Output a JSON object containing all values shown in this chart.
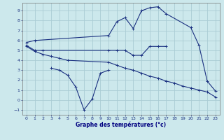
{
  "xlabel": "Graphe des températures (°c)",
  "background_color": "#cce8ec",
  "grid_color": "#aaccd4",
  "line_color": "#1a3080",
  "x_ticks": [
    0,
    1,
    2,
    3,
    4,
    5,
    6,
    7,
    8,
    9,
    10,
    11,
    12,
    13,
    14,
    15,
    16,
    17,
    18,
    19,
    20,
    21,
    22,
    23
  ],
  "y_ticks": [
    -1,
    0,
    1,
    2,
    3,
    4,
    5,
    6,
    7,
    8,
    9
  ],
  "ylim": [
    -1.5,
    9.8
  ],
  "xlim": [
    -0.5,
    23.5
  ],
  "lines": [
    {
      "x": [
        0,
        1,
        10,
        11,
        12,
        13,
        14,
        15,
        16,
        17,
        20,
        21,
        22,
        23
      ],
      "y": [
        5.8,
        6.0,
        6.5,
        7.9,
        8.3,
        7.2,
        9.0,
        9.3,
        9.4,
        8.7,
        7.3,
        5.5,
        1.9,
        0.9
      ]
    },
    {
      "x": [
        0,
        1,
        2,
        10,
        11,
        12,
        13,
        14,
        15,
        16,
        17
      ],
      "y": [
        5.5,
        5.0,
        5.0,
        5.0,
        5.0,
        5.0,
        4.5,
        4.5,
        5.4,
        5.4,
        5.4
      ]
    },
    {
      "x": [
        0,
        1,
        2,
        3,
        4,
        5,
        10,
        11,
        12,
        13,
        14,
        15,
        16,
        17,
        18,
        19,
        20,
        21,
        22,
        23
      ],
      "y": [
        5.4,
        4.9,
        4.6,
        4.4,
        4.2,
        4.0,
        3.8,
        3.5,
        3.2,
        3.0,
        2.7,
        2.4,
        2.2,
        1.9,
        1.7,
        1.4,
        1.2,
        1.0,
        0.8,
        0.3
      ]
    },
    {
      "x": [
        3,
        4,
        5,
        6,
        7,
        8,
        9,
        10
      ],
      "y": [
        3.2,
        3.0,
        2.5,
        1.3,
        -1.0,
        0.1,
        2.7,
        3.0
      ]
    }
  ]
}
